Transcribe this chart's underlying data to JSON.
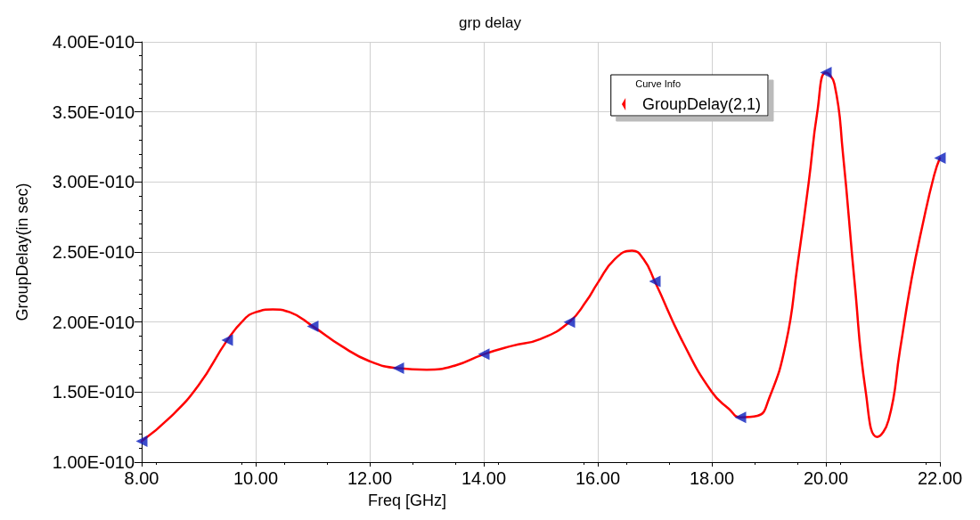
{
  "chart_data": {
    "type": "line",
    "title": "grp delay",
    "xlabel": "Freq [GHz]",
    "ylabel": "GroupDelay(in sec)",
    "legend_title": "Curve Info",
    "legend": "top right",
    "grid": true,
    "xlim": [
      8,
      22
    ],
    "xticks": [
      {
        "value": 8,
        "label": "8.00"
      },
      {
        "value": 10,
        "label": "10.00"
      },
      {
        "value": 12,
        "label": "12.00"
      },
      {
        "value": 14,
        "label": "14.00"
      },
      {
        "value": 16,
        "label": "16.00"
      },
      {
        "value": 18,
        "label": "18.00"
      },
      {
        "value": 20,
        "label": "20.00"
      },
      {
        "value": 22,
        "label": "22.00"
      }
    ],
    "ylim": [
      1e-10,
      4e-10
    ],
    "yticks": [
      {
        "value": 1e-10,
        "label": "1.00E-010"
      },
      {
        "value": 1.5e-10,
        "label": "1.50E-010"
      },
      {
        "value": 2e-10,
        "label": "2.00E-010"
      },
      {
        "value": 2.5e-10,
        "label": "2.50E-010"
      },
      {
        "value": 3e-10,
        "label": "3.00E-010"
      },
      {
        "value": 3.5e-10,
        "label": "3.50E-010"
      },
      {
        "value": 4e-10,
        "label": "4.00E-010"
      }
    ],
    "series": [
      {
        "name": "GroupDelay(2,1)",
        "color": "#ff0000",
        "marker": "none",
        "line_style": "solid",
        "x": [
          8,
          8.5,
          9,
          9.5,
          9.8,
          10,
          10.3,
          10.6,
          11,
          11.5,
          12,
          12.5,
          13,
          13.5,
          14,
          14.5,
          15,
          15.5,
          15.8,
          16,
          16.3,
          16.6,
          16.8,
          17,
          17.5,
          18,
          18.3,
          18.5,
          18.8,
          19,
          19.3,
          19.5,
          19.7,
          19.85,
          20,
          20.15,
          20.3,
          20.5,
          20.7,
          20.9,
          21.1,
          21.3,
          21.5,
          21.7,
          21.9,
          22
        ],
        "values": [
          1.15e-10,
          1.32e-10,
          1.55e-10,
          1.87e-10,
          2.02e-10,
          2.07e-10,
          2.09e-10,
          2.07e-10,
          1.97e-10,
          1.83e-10,
          1.72e-10,
          1.67e-10,
          1.66e-10,
          1.69e-10,
          1.77e-10,
          1.83e-10,
          1.88e-10,
          2e-10,
          2.15e-10,
          2.28e-10,
          2.45e-10,
          2.51e-10,
          2.45e-10,
          2.29e-10,
          1.85e-10,
          1.5e-10,
          1.38e-10,
          1.32e-10,
          1.33e-10,
          1.45e-10,
          1.85e-10,
          2.4e-10,
          3e-10,
          3.5e-10,
          3.78e-10,
          3.7e-10,
          3.2e-10,
          2.3e-10,
          1.5e-10,
          1.18e-10,
          1.3e-10,
          1.8e-10,
          2.3e-10,
          2.7e-10,
          3.05e-10,
          3.17e-10
        ]
      },
      {
        "type": "scatter",
        "color": "#0a1ebe",
        "marker": "triangle",
        "x": [
          8,
          9.5,
          11,
          12.5,
          14,
          15.5,
          17,
          18.5,
          20,
          22
        ],
        "values": [
          1.15e-10,
          1.87e-10,
          1.97e-10,
          1.67e-10,
          1.77e-10,
          2e-10,
          2.29e-10,
          1.32e-10,
          3.78e-10,
          3.17e-10
        ]
      }
    ]
  }
}
